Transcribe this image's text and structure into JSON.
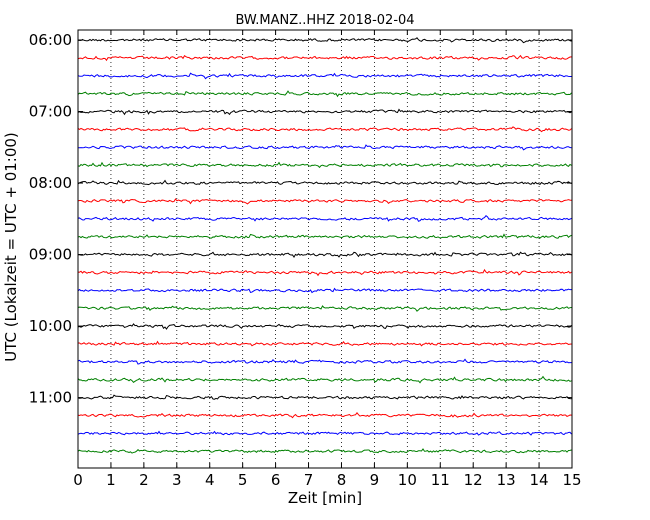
{
  "chart_data": {
    "type": "line",
    "title": "BW.MANZ..HHZ 2018-02-04",
    "xlabel": "Zeit  [min]",
    "ylabel": "UTC (Lokalzeit = UTC + 01:00)",
    "xlim": [
      0,
      15
    ],
    "x_ticks": [
      0,
      1,
      2,
      3,
      4,
      5,
      6,
      7,
      8,
      9,
      10,
      11,
      12,
      13,
      14,
      15
    ],
    "x_tick_labels": [
      "0",
      "1",
      "2",
      "3",
      "4",
      "5",
      "6",
      "7",
      "8",
      "9",
      "10",
      "11",
      "12",
      "13",
      "14",
      "15"
    ],
    "grid": "vertical dotted",
    "trace_interval_min": 15,
    "trace_colors": [
      "#000000",
      "#ff0000",
      "#0000ff",
      "#008000"
    ],
    "traces": [
      {
        "start": "06:00",
        "color": "#000000"
      },
      {
        "start": "06:15",
        "color": "#ff0000"
      },
      {
        "start": "06:30",
        "color": "#0000ff"
      },
      {
        "start": "06:45",
        "color": "#008000"
      },
      {
        "start": "07:00",
        "color": "#000000"
      },
      {
        "start": "07:15",
        "color": "#ff0000"
      },
      {
        "start": "07:30",
        "color": "#0000ff"
      },
      {
        "start": "07:45",
        "color": "#008000"
      },
      {
        "start": "08:00",
        "color": "#000000"
      },
      {
        "start": "08:15",
        "color": "#ff0000"
      },
      {
        "start": "08:30",
        "color": "#0000ff"
      },
      {
        "start": "08:45",
        "color": "#008000"
      },
      {
        "start": "09:00",
        "color": "#000000"
      },
      {
        "start": "09:15",
        "color": "#ff0000"
      },
      {
        "start": "09:30",
        "color": "#0000ff"
      },
      {
        "start": "09:45",
        "color": "#008000"
      },
      {
        "start": "10:00",
        "color": "#000000"
      },
      {
        "start": "10:15",
        "color": "#ff0000"
      },
      {
        "start": "10:30",
        "color": "#0000ff"
      },
      {
        "start": "10:45",
        "color": "#008000"
      },
      {
        "start": "11:00",
        "color": "#000000"
      },
      {
        "start": "11:15",
        "color": "#ff0000"
      },
      {
        "start": "11:30",
        "color": "#0000ff"
      },
      {
        "start": "11:45",
        "color": "#008000"
      }
    ],
    "y_tick_labels": [
      {
        "label": "06:00",
        "trace": 0
      },
      {
        "label": "07:00",
        "trace": 4
      },
      {
        "label": "08:00",
        "trace": 8
      },
      {
        "label": "09:00",
        "trace": 12
      },
      {
        "label": "10:00",
        "trace": 16
      },
      {
        "label": "11:00",
        "trace": 20
      }
    ]
  }
}
